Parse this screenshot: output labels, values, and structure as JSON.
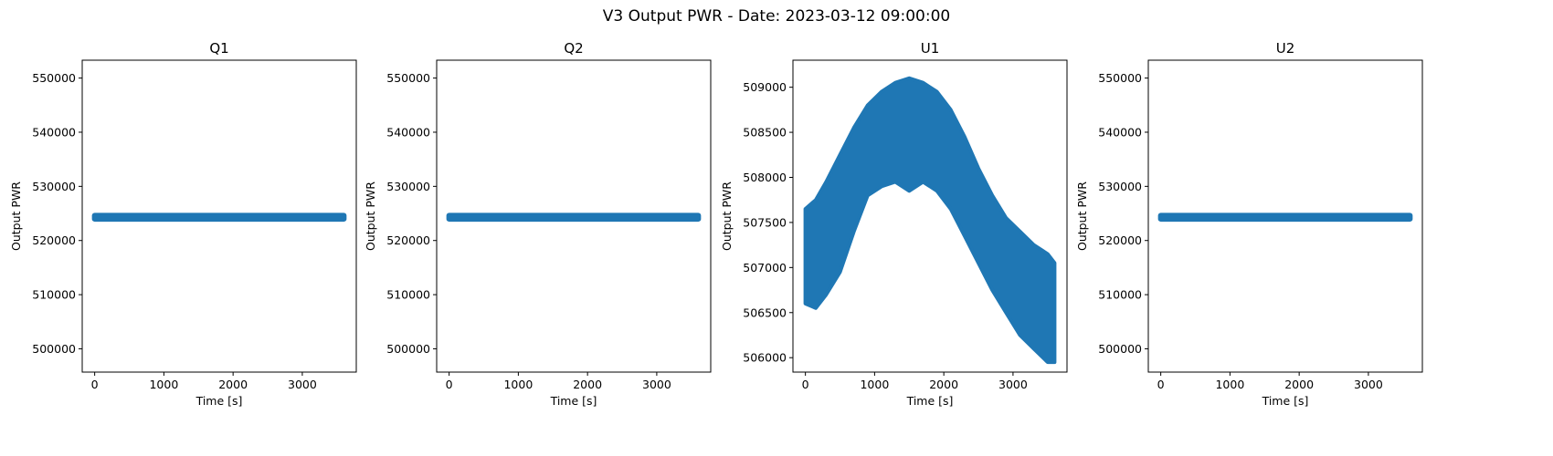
{
  "figure": {
    "suptitle": "V3 Output PWR - Date: 2023-03-12 09:00:00",
    "marker_color": "#1f77b4"
  },
  "chart_data": [
    {
      "type": "scatter",
      "title": "Q1",
      "xlabel": "Time [s]",
      "ylabel": "Output PWR",
      "xlim": [
        -180,
        3780
      ],
      "ylim": [
        495700,
        553300
      ],
      "xticks": [
        0,
        1000,
        2000,
        3000
      ],
      "yticks": [
        500000,
        510000,
        520000,
        530000,
        540000,
        550000
      ],
      "series": [
        {
          "kind": "constant",
          "x_range": [
            0,
            3600
          ],
          "y": 524300,
          "spread": 400
        }
      ]
    },
    {
      "type": "scatter",
      "title": "Q2",
      "xlabel": "Time [s]",
      "ylabel": "Output PWR",
      "xlim": [
        -180,
        3780
      ],
      "ylim": [
        495700,
        553300
      ],
      "xticks": [
        0,
        1000,
        2000,
        3000
      ],
      "yticks": [
        500000,
        510000,
        520000,
        530000,
        540000,
        550000
      ],
      "series": [
        {
          "kind": "constant",
          "x_range": [
            0,
            3600
          ],
          "y": 524300,
          "spread": 400
        }
      ]
    },
    {
      "type": "scatter",
      "title": "U1",
      "xlabel": "Time [s]",
      "ylabel": "Output PWR",
      "xlim": [
        -180,
        3780
      ],
      "ylim": [
        505840,
        509300
      ],
      "xticks": [
        0,
        1000,
        2000,
        3000
      ],
      "yticks": [
        506000,
        506500,
        507000,
        507500,
        508000,
        508500,
        509000
      ],
      "series": [
        {
          "kind": "band",
          "x": [
            0,
            150,
            300,
            500,
            700,
            900,
            1100,
            1300,
            1500,
            1700,
            1900,
            2100,
            2300,
            2500,
            2700,
            2900,
            3100,
            3300,
            3500,
            3600
          ],
          "upper": [
            507650,
            507750,
            507950,
            508250,
            508550,
            508800,
            508950,
            509050,
            509100,
            509050,
            508950,
            508750,
            508450,
            508100,
            507800,
            507550,
            507400,
            507250,
            507150,
            507050
          ],
          "lower": [
            506600,
            506550,
            506700,
            506950,
            507400,
            507800,
            507900,
            507950,
            507850,
            507950,
            507850,
            507650,
            507350,
            507050,
            506750,
            506500,
            506250,
            506100,
            505950,
            505950
          ]
        }
      ]
    },
    {
      "type": "scatter",
      "title": "U2",
      "xlabel": "Time [s]",
      "ylabel": "Output PWR",
      "xlim": [
        -180,
        3780
      ],
      "ylim": [
        495700,
        553300
      ],
      "xticks": [
        0,
        1000,
        2000,
        3000
      ],
      "yticks": [
        500000,
        510000,
        520000,
        530000,
        540000,
        550000
      ],
      "series": [
        {
          "kind": "constant",
          "x_range": [
            0,
            3600
          ],
          "y": 524300,
          "spread": 400
        }
      ]
    }
  ]
}
